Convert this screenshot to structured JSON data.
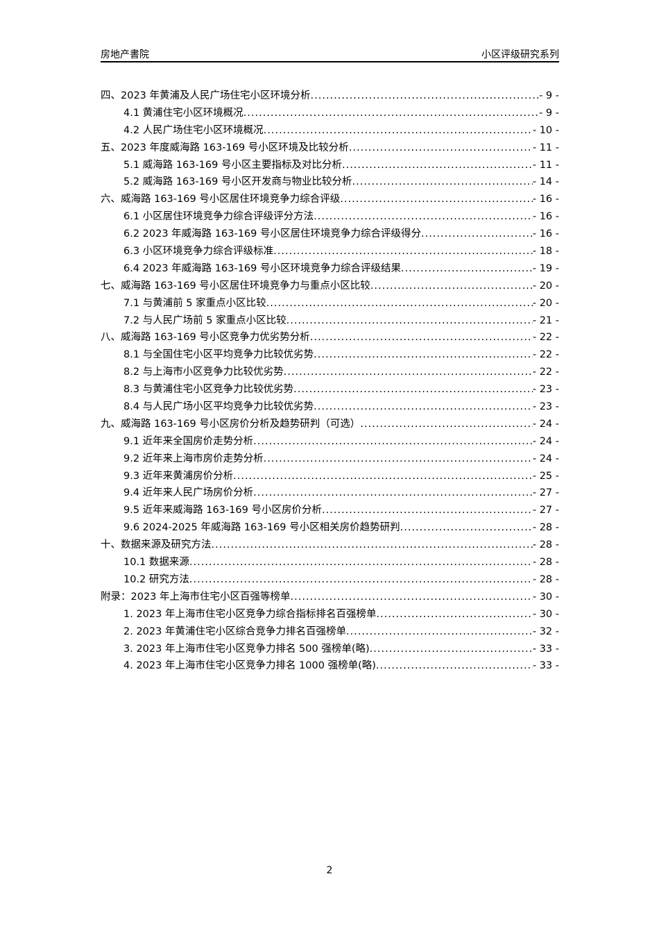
{
  "header": {
    "left": "房地产書院",
    "right": "小区评级研究系列"
  },
  "toc": [
    {
      "level": 1,
      "title": "四、2023 年黄浦及人民广场住宅小区环境分析",
      "page": "- 9 -"
    },
    {
      "level": 2,
      "title": "4.1  黄浦住宅小区环境概况",
      "page": "- 9 -"
    },
    {
      "level": 2,
      "title": "4.2  人民广场住宅小区环境概况",
      "page": "- 10 -"
    },
    {
      "level": 1,
      "title": "五、2023 年度威海路 163-169 号小区环境及比较分析",
      "page": "- 11 -"
    },
    {
      "level": 2,
      "title": "5.1  威海路 163-169 号小区主要指标及对比分析",
      "page": "- 11 -"
    },
    {
      "level": 2,
      "title": "5.2  威海路 163-169 号小区开发商与物业比较分析",
      "page": "- 14 -"
    },
    {
      "level": 1,
      "title": "六、威海路 163-169 号小区居住环境竞争力综合评级",
      "page": "- 16 -"
    },
    {
      "level": 2,
      "title": "6.1  小区居住环境竞争力综合评级评分方法",
      "page": "- 16 -"
    },
    {
      "level": 2,
      "title": "6.2  2023 年威海路 163-169 号小区居住环境竞争力综合评级得分",
      "page": "- 16 -"
    },
    {
      "level": 2,
      "title": "6.3  小区环境竞争力综合评级标准",
      "page": "- 18 -"
    },
    {
      "level": 2,
      "title": "6.4  2023 年威海路 163-169 号小区环境竞争力综合评级结果",
      "page": "- 19 -"
    },
    {
      "level": 1,
      "title": "七、威海路 163-169 号小区居住环境竞争力与重点小区比较",
      "page": "- 20 -"
    },
    {
      "level": 2,
      "title": "7.1  与黄浦前 5 家重点小区比较",
      "page": "- 20 -"
    },
    {
      "level": 2,
      "title": "7.2  与人民广场前 5 家重点小区比较",
      "page": "- 21 -"
    },
    {
      "level": 1,
      "title": "八、威海路 163-169 号小区竞争力优劣势分析",
      "page": "- 22 -"
    },
    {
      "level": 2,
      "title": "8.1  与全国住宅小区平均竞争力比较优劣势",
      "page": "- 22 -"
    },
    {
      "level": 2,
      "title": "8.2  与上海市小区竞争力比较优劣势",
      "page": "- 22 -"
    },
    {
      "level": 2,
      "title": "8.3  与黄浦住宅小区竞争力比较优劣势",
      "page": "- 23 -"
    },
    {
      "level": 2,
      "title": "8.4  与人民广场小区平均竞争力比较优劣势",
      "page": "- 23 -"
    },
    {
      "level": 1,
      "title": "九、威海路 163-169 号小区房价分析及趋势研判（可选）",
      "page": "- 24 -"
    },
    {
      "level": 2,
      "title": "9.1  近年来全国房价走势分析",
      "page": "- 24 -"
    },
    {
      "level": 2,
      "title": "9.2  近年来上海市房价走势分析",
      "page": "- 24 -"
    },
    {
      "level": 2,
      "title": "9.3  近年来黄浦房价分析",
      "page": "- 25 -"
    },
    {
      "level": 2,
      "title": "9.4  近年来人民广场房价分析",
      "page": "- 27 -"
    },
    {
      "level": 2,
      "title": "9.5  近年来威海路 163-169 号小区房价分析",
      "page": "- 27 -"
    },
    {
      "level": 2,
      "title": "9.6  2024-2025 年威海路 163-169 号小区相关房价趋势研判",
      "page": "- 28 -"
    },
    {
      "level": 1,
      "title": "十、数据来源及研究方法",
      "page": "- 28 -"
    },
    {
      "level": 2,
      "title": "10.1  数据来源",
      "page": "- 28 -"
    },
    {
      "level": 2,
      "title": "10.2  研究方法",
      "page": "- 28 -"
    },
    {
      "level": 1,
      "title": "附录：2023 年上海市住宅小区百强等榜单",
      "page": "- 30 -"
    },
    {
      "level": 2,
      "title": "1.  2023 年上海市住宅小区竞争力综合指标排名百强榜单",
      "page": "- 30 -"
    },
    {
      "level": 2,
      "title": "2.  2023 年黄浦住宅小区综合竞争力排名百强榜单",
      "page": "- 32 -"
    },
    {
      "level": 2,
      "title": "3.  2023 年上海市住宅小区竞争力排名 500 强榜单(略)",
      "page": "- 33 -"
    },
    {
      "level": 2,
      "title": "4.  2023 年上海市住宅小区竞争力排名 1000 强榜单(略)",
      "page": "- 33 -"
    }
  ],
  "footer": {
    "page_number": "2"
  }
}
